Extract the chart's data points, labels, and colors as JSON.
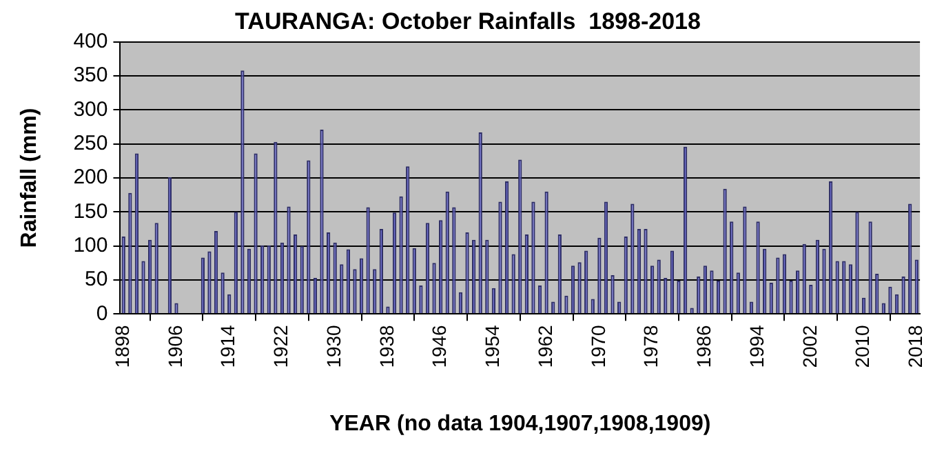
{
  "chart_data": {
    "type": "bar",
    "title": "TAURANGA: October Rainfalls  1898-2018",
    "xlabel": "YEAR (no data 1904,1907,1908,1909)",
    "ylabel": "Rainfall (mm)",
    "x": [
      1898,
      1899,
      1900,
      1901,
      1902,
      1903,
      1904,
      1905,
      1906,
      1907,
      1908,
      1909,
      1910,
      1911,
      1912,
      1913,
      1914,
      1915,
      1916,
      1917,
      1918,
      1919,
      1920,
      1921,
      1922,
      1923,
      1924,
      1925,
      1926,
      1927,
      1928,
      1929,
      1930,
      1931,
      1932,
      1933,
      1934,
      1935,
      1936,
      1937,
      1938,
      1939,
      1940,
      1941,
      1942,
      1943,
      1944,
      1945,
      1946,
      1947,
      1948,
      1949,
      1950,
      1951,
      1952,
      1953,
      1954,
      1955,
      1956,
      1957,
      1958,
      1959,
      1960,
      1961,
      1962,
      1963,
      1964,
      1965,
      1966,
      1967,
      1968,
      1969,
      1970,
      1971,
      1972,
      1973,
      1974,
      1975,
      1976,
      1977,
      1978,
      1979,
      1980,
      1981,
      1982,
      1983,
      1984,
      1985,
      1986,
      1987,
      1988,
      1989,
      1990,
      1991,
      1992,
      1993,
      1994,
      1995,
      1996,
      1997,
      1998,
      1999,
      2000,
      2001,
      2002,
      2003,
      2004,
      2005,
      2006,
      2007,
      2008,
      2009,
      2010,
      2011,
      2012,
      2013,
      2014,
      2015,
      2016,
      2017,
      2018
    ],
    "values": [
      114,
      178,
      236,
      78,
      109,
      134,
      null,
      201,
      16,
      null,
      null,
      null,
      83,
      92,
      122,
      61,
      29,
      150,
      358,
      96,
      236,
      101,
      101,
      253,
      105,
      158,
      117,
      100,
      226,
      53,
      271,
      120,
      105,
      73,
      95,
      66,
      82,
      157,
      66,
      125,
      11,
      149,
      173,
      217,
      97,
      42,
      134,
      75,
      138,
      180,
      157,
      32,
      120,
      109,
      267,
      109,
      38,
      165,
      195,
      88,
      227,
      117,
      165,
      42,
      180,
      18,
      117,
      27,
      71,
      76,
      93,
      22,
      112,
      165,
      57,
      18,
      114,
      162,
      125,
      125,
      71,
      80,
      53,
      93,
      49,
      246,
      9,
      55,
      71,
      64,
      49,
      184,
      136,
      61,
      158,
      18,
      136,
      96,
      46,
      83,
      88,
      49,
      64,
      103,
      43,
      109,
      96,
      195,
      78,
      78,
      73,
      150,
      24,
      136,
      59,
      16,
      40,
      29,
      55,
      162,
      80
    ],
    "color": "#6b6bd0",
    "xlim": [
      1897.5,
      2018.5
    ],
    "xticks": [
      1898,
      1906,
      1914,
      1922,
      1930,
      1938,
      1946,
      1954,
      1962,
      1970,
      1978,
      1986,
      1994,
      2002,
      2010,
      2018
    ],
    "ylim": [
      0,
      400
    ],
    "yticks": [
      0,
      50,
      100,
      150,
      200,
      250,
      300,
      350,
      400
    ],
    "grid": "y"
  }
}
